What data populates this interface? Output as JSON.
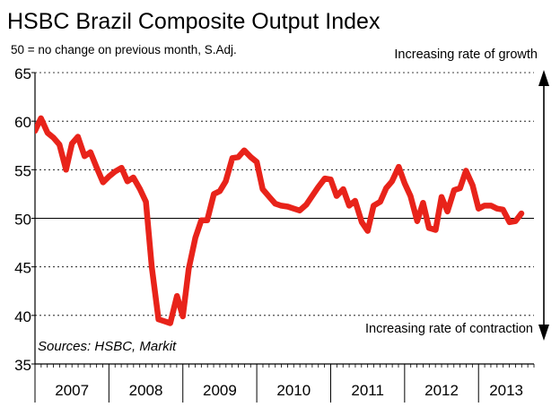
{
  "chart_data": {
    "type": "line",
    "title": "HSBC Brazil Composite Output Index",
    "subtitle": "50 = no change on previous month, S.Adj.",
    "annotation_top": "Increasing rate of growth",
    "annotation_bottom": "Increasing rate of contraction",
    "source": "Sources: HSBC, Markit",
    "ylim": [
      35,
      65
    ],
    "yticks": [
      "35",
      "40",
      "45",
      "50",
      "55",
      "60",
      "65"
    ],
    "xlim": [
      2007,
      2013.75
    ],
    "year_labels": [
      "2007",
      "2008",
      "2009",
      "2010",
      "2011",
      "2012",
      "2013"
    ],
    "reference_line": 50,
    "grid": "horizontal dashed",
    "series_color": "#e8231a",
    "series": [
      {
        "x": [
          2007.0,
          2007.08,
          2007.17,
          2007.25,
          2007.33,
          2007.42,
          2007.5,
          2007.58,
          2007.67,
          2007.75,
          2007.83,
          2007.92,
          2008.0,
          2008.08,
          2008.17,
          2008.25,
          2008.33,
          2008.42,
          2008.5,
          2008.58,
          2008.67,
          2008.75,
          2008.83,
          2008.92,
          2009.0,
          2009.08,
          2009.17,
          2009.25,
          2009.33,
          2009.42,
          2009.5,
          2009.58,
          2009.67,
          2009.75,
          2009.83,
          2009.92,
          2010.0,
          2010.08,
          2010.17,
          2010.25,
          2010.33,
          2010.42,
          2010.5,
          2010.58,
          2010.67,
          2010.75,
          2010.83,
          2010.92,
          2011.0,
          2011.08,
          2011.17,
          2011.25,
          2011.33,
          2011.42,
          2011.5,
          2011.58,
          2011.67,
          2011.75,
          2011.83,
          2011.92,
          2012.0,
          2012.08,
          2012.17,
          2012.25,
          2012.33,
          2012.42,
          2012.5,
          2012.58,
          2012.67,
          2012.75,
          2012.83,
          2012.92,
          2013.0,
          2013.08,
          2013.17,
          2013.25,
          2013.33,
          2013.42,
          2013.5,
          2013.58
        ],
        "values": [
          59.0,
          60.3,
          58.8,
          58.3,
          57.6,
          55.0,
          57.7,
          58.4,
          56.4,
          56.8,
          55.3,
          53.7,
          54.3,
          54.8,
          55.2,
          53.8,
          54.2,
          53.0,
          51.7,
          45.0,
          39.6,
          39.4,
          39.2,
          42.0,
          39.9,
          44.8,
          48.0,
          49.8,
          49.8,
          52.5,
          52.8,
          53.8,
          56.2,
          56.3,
          57.0,
          56.3,
          55.8,
          53.0,
          52.2,
          51.5,
          51.3,
          51.2,
          51.0,
          50.8,
          51.4,
          52.3,
          53.2,
          54.1,
          54.0,
          52.3,
          53.0,
          51.3,
          51.8,
          49.6,
          48.7,
          51.3,
          51.7,
          53.1,
          53.8,
          55.3,
          53.6,
          52.3,
          49.7,
          51.6,
          49.0,
          48.8,
          52.2,
          50.7,
          52.9,
          53.1,
          54.9,
          53.4,
          51.0,
          51.3,
          51.3,
          51.0,
          50.9,
          49.6,
          49.7,
          50.5
        ]
      }
    ]
  }
}
